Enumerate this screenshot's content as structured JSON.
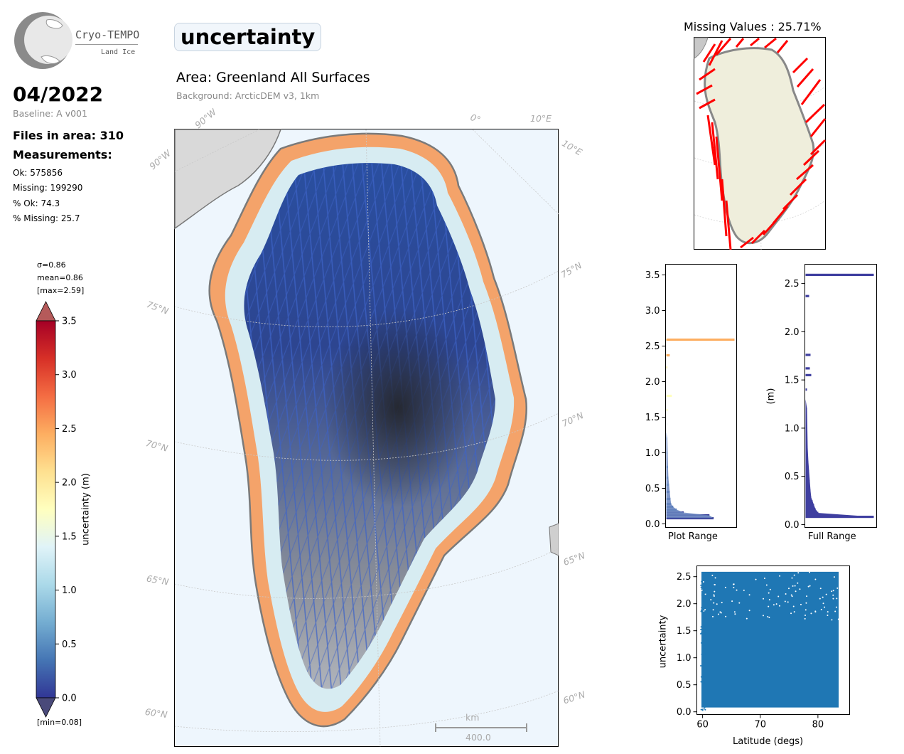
{
  "logo": {
    "brand": "Cryo-TEMPO",
    "sub": "Land Ice"
  },
  "header": {
    "date": "04/2022",
    "baseline": "Baseline: A v001",
    "files": "Files in area: 310",
    "measurements_title": "Measurements:",
    "stats": [
      "Ok: 575856",
      "Missing: 199290",
      "% Ok: 74.3",
      "% Missing: 25.7"
    ]
  },
  "title": {
    "variable": "uncertainty",
    "area": "Area: Greenland All Surfaces",
    "background": "Background: ArcticDEM v3, 1km"
  },
  "colorbar": {
    "sigma": "σ=0.86",
    "mean": "mean=0.86",
    "max": "[max=2.59]",
    "min": "[min=0.08]",
    "label": "uncertainty (m)",
    "ticks": [
      "3.5",
      "3.0",
      "2.5",
      "2.0",
      "1.5",
      "1.0",
      "0.5",
      "0.0"
    ],
    "colors": [
      "#313695",
      "#4575b4",
      "#74add1",
      "#abd9e9",
      "#e0f3f8",
      "#ffffbf",
      "#fee090",
      "#fdae61",
      "#f46d43",
      "#d73027",
      "#a50026"
    ]
  },
  "map": {
    "lon_labels": [
      "90°W",
      "90°W",
      "0°",
      "10°E",
      "10°E"
    ],
    "lat_labels_left": [
      "75°N",
      "70°N",
      "65°N",
      "60°N"
    ],
    "lat_labels_right": [
      "75°N",
      "70°N",
      "65°N",
      "60°N"
    ],
    "scale_unit": "km",
    "scale_value": "400.0"
  },
  "missing": {
    "title": "Missing Values : 25.71%"
  },
  "chart_data": [
    {
      "type": "bar",
      "orientation": "horizontal",
      "title": "",
      "xlabel": "Plot Range",
      "ylabel": "",
      "ylim": [
        -0.05,
        3.65
      ],
      "yticks": [
        "0.0",
        "0.5",
        "1.0",
        "1.5",
        "2.0",
        "2.5",
        "3.0",
        "3.5"
      ],
      "bins": [
        0.08,
        0.12,
        0.16,
        0.2,
        0.24,
        0.28,
        0.35,
        0.45,
        0.55,
        0.65,
        0.8,
        1.0,
        1.2,
        1.4,
        1.6,
        1.8,
        2.2,
        2.37,
        2.59
      ],
      "counts": [
        68,
        62,
        25,
        15,
        10,
        7,
        6,
        5,
        4,
        3,
        2.5,
        2,
        1.5,
        1.5,
        2,
        8,
        1.5,
        5,
        98
      ]
    },
    {
      "type": "bar",
      "orientation": "horizontal",
      "title": "",
      "xlabel": "Full Range",
      "ylabel": "(m)",
      "ylim": [
        -0.03,
        2.7
      ],
      "yticks": [
        "0.0",
        "0.5",
        "1.0",
        "1.5",
        "2.0",
        "2.5"
      ],
      "bins": [
        0.08,
        0.12,
        0.16,
        0.2,
        0.24,
        0.28,
        0.35,
        0.45,
        0.55,
        0.65,
        0.8,
        1.0,
        1.2,
        1.4,
        1.55,
        1.62,
        1.76,
        2.37,
        2.59
      ],
      "counts": [
        96,
        18,
        14,
        12,
        10,
        8,
        7,
        6,
        5,
        4,
        3,
        2.5,
        2,
        2,
        8,
        6,
        7,
        5,
        96
      ]
    },
    {
      "type": "scatter",
      "title": "",
      "xlabel": "Latitude (degs)",
      "ylabel": "uncertainty",
      "xlim": [
        59,
        85.5
      ],
      "ylim": [
        -0.05,
        2.7
      ],
      "xticks": [
        "60",
        "70",
        "80"
      ],
      "yticks": [
        "0.0",
        "0.5",
        "1.0",
        "1.5",
        "2.0",
        "2.5"
      ],
      "x_range": [
        59.8,
        83.6
      ],
      "y_range": [
        0.08,
        2.59
      ],
      "color": "#1f77b4"
    }
  ]
}
